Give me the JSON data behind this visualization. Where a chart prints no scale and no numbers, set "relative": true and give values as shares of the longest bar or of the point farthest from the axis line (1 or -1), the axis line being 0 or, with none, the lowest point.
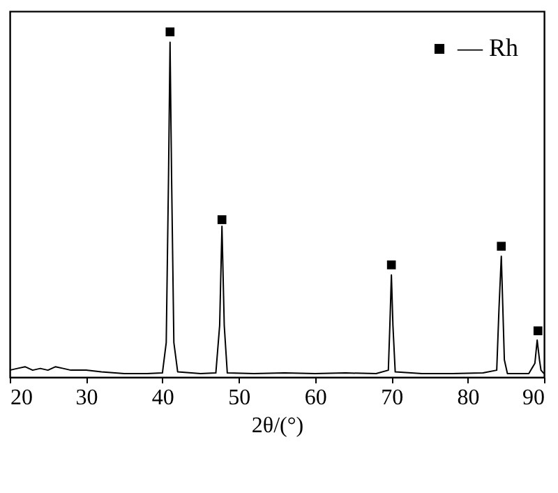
{
  "chart_data": {
    "type": "line",
    "relative": true,
    "xlabel": "2θ/(°)",
    "xlim": [
      20,
      90
    ],
    "xticks": [
      20,
      30,
      40,
      50,
      60,
      70,
      80,
      90
    ],
    "grid": false,
    "legend": "top right",
    "tick_labels": "x",
    "series": [
      {
        "color": "#000000",
        "marker": "none",
        "line_style": "solid",
        "x": [
          20,
          21,
          22,
          23,
          24,
          25,
          26,
          27,
          28,
          29,
          30,
          32,
          35,
          38,
          40,
          40.5,
          40.8,
          41,
          41.2,
          41.5,
          42,
          45,
          47,
          47.5,
          47.8,
          48.1,
          48.5,
          52,
          56,
          60,
          64,
          68,
          69.6,
          69.8,
          70,
          70.2,
          70.5,
          74,
          78,
          82,
          83.8,
          84.1,
          84.4,
          84.6,
          84.8,
          85.2,
          88,
          88.8,
          89.1,
          89.4,
          89.6,
          90
        ],
        "values": [
          0.02,
          0.025,
          0.03,
          0.02,
          0.025,
          0.02,
          0.03,
          0.025,
          0.02,
          0.02,
          0.02,
          0.015,
          0.01,
          0.01,
          0.012,
          0.1,
          0.58,
          0.97,
          0.58,
          0.1,
          0.015,
          0.01,
          0.012,
          0.15,
          0.437,
          0.15,
          0.012,
          0.01,
          0.012,
          0.01,
          0.012,
          0.01,
          0.02,
          0.15,
          0.296,
          0.15,
          0.015,
          0.01,
          0.01,
          0.012,
          0.02,
          0.2,
          0.35,
          0.2,
          0.05,
          0.01,
          0.01,
          0.04,
          0.107,
          0.05,
          0.02,
          0.01
        ]
      },
      {
        "type": "scatter",
        "name": "— Rh",
        "color": "#000000",
        "marker": "square",
        "x": [
          41,
          47.8,
          70,
          84.4,
          89.2
        ],
        "values": [
          1,
          0.456,
          0.325,
          0.379,
          0.134
        ]
      }
    ]
  }
}
